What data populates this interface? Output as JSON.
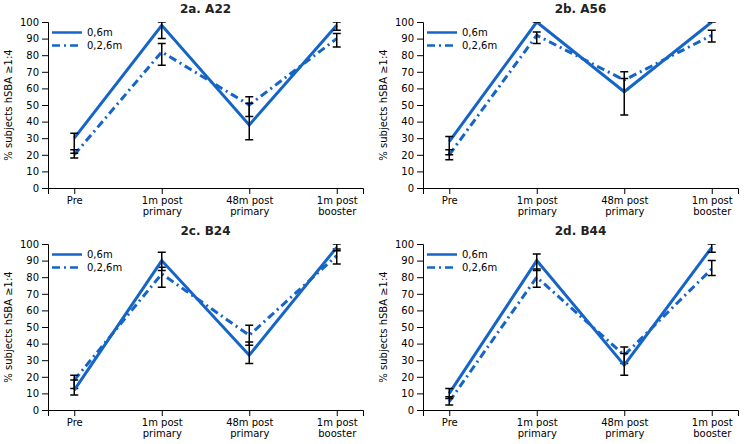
{
  "chart_data": [
    {
      "type": "line",
      "title": "2a. A22",
      "categories": [
        "Pre",
        "1m post\nprimary",
        "48m post\nprimary",
        "1m post\nbooster"
      ],
      "ylabel": "% subjects hSBA ≥1:4",
      "ylim": [
        0,
        100
      ],
      "yticks": [
        0,
        10,
        20,
        30,
        40,
        50,
        60,
        70,
        80,
        90,
        100
      ],
      "legend": "upper-left",
      "series": [
        {
          "name": "0,6m",
          "color": "#1565C8",
          "line_style": "solid",
          "values": [
            30,
            98,
            38,
            98
          ],
          "yerr_lo": [
            9,
            8,
            9,
            3
          ],
          "yerr_hi": [
            3,
            2,
            13,
            2
          ]
        },
        {
          "name": "0,2,6m",
          "color": "#1565C8",
          "line_style": "dashdot",
          "values": [
            20,
            82,
            50,
            90
          ],
          "yerr_lo": [
            2,
            8,
            7,
            5
          ],
          "yerr_hi": [
            3,
            5,
            5,
            3
          ]
        }
      ]
    },
    {
      "type": "line",
      "title": "2b. A56",
      "categories": [
        "Pre",
        "1m post\nprimary",
        "48m post\nprimary",
        "1m post\nbooster"
      ],
      "ylabel": "% subjects hSBA ≥1:4",
      "ylim": [
        0,
        100
      ],
      "yticks": [
        0,
        10,
        20,
        30,
        40,
        50,
        60,
        70,
        80,
        90,
        100
      ],
      "legend": "upper-left",
      "series": [
        {
          "name": "0,6m",
          "color": "#1565C8",
          "line_style": "solid",
          "values": [
            28,
            100,
            58,
            100
          ],
          "yerr_lo": [
            8,
            0,
            14,
            0
          ],
          "yerr_hi": [
            3,
            0,
            8,
            0
          ]
        },
        {
          "name": "0,2,6m",
          "color": "#1565C8",
          "line_style": "dashdot",
          "values": [
            20,
            92,
            65,
            92
          ],
          "yerr_lo": [
            3,
            5,
            6,
            4
          ],
          "yerr_hi": [
            3,
            2,
            5,
            3
          ]
        }
      ]
    },
    {
      "type": "line",
      "title": "2c. B24",
      "categories": [
        "Pre",
        "1m post\nprimary",
        "48m post\nprimary",
        "1m post\nbooster"
      ],
      "ylabel": "% subjects hSBA ≥1:4",
      "ylim": [
        0,
        100
      ],
      "yticks": [
        0,
        10,
        20,
        30,
        40,
        50,
        60,
        70,
        80,
        90,
        100
      ],
      "legend": "upper-left",
      "series": [
        {
          "name": "0,6m",
          "color": "#1565C8",
          "line_style": "solid",
          "values": [
            12,
            90,
            33,
            98
          ],
          "yerr_lo": [
            3,
            6,
            5,
            2
          ],
          "yerr_hi": [
            6,
            5,
            8,
            2
          ]
        },
        {
          "name": "0,2,6m",
          "color": "#1565C8",
          "line_style": "dashdot",
          "values": [
            18,
            82,
            45,
            93
          ],
          "yerr_lo": [
            5,
            8,
            6,
            5
          ],
          "yerr_hi": [
            3,
            4,
            6,
            4
          ]
        }
      ]
    },
    {
      "type": "line",
      "title": "2d. B44",
      "categories": [
        "Pre",
        "1m post\nprimary",
        "48m post\nprimary",
        "1m post\nbooster"
      ],
      "ylabel": "% subjects hSBA ≥1:4",
      "ylim": [
        0,
        100
      ],
      "yticks": [
        0,
        10,
        20,
        30,
        40,
        50,
        60,
        70,
        80,
        90,
        100
      ],
      "legend": "upper-left",
      "series": [
        {
          "name": "0,6m",
          "color": "#1565C8",
          "line_style": "solid",
          "values": [
            10,
            90,
            27,
            98
          ],
          "yerr_lo": [
            3,
            6,
            6,
            3
          ],
          "yerr_hi": [
            3,
            4,
            7,
            2
          ]
        },
        {
          "name": "0,2,6m",
          "color": "#1565C8",
          "line_style": "dashdot",
          "values": [
            5,
            80,
            33,
            85
          ],
          "yerr_lo": [
            2,
            6,
            5,
            4
          ],
          "yerr_hi": [
            3,
            5,
            5,
            5
          ]
        }
      ]
    }
  ]
}
